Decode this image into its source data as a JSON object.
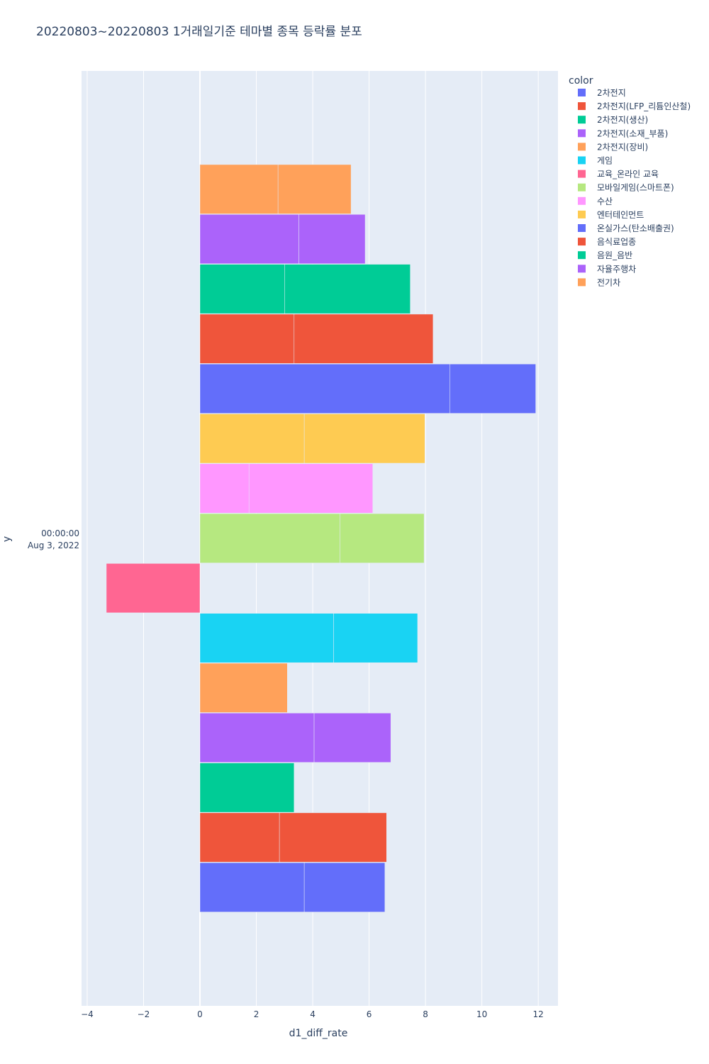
{
  "chart_data": {
    "type": "bar",
    "orientation": "horizontal",
    "barmode": "stacked",
    "title": "20220803~20220803 1거래일기준 테마별 종목 등락률 분포",
    "xlabel": "d1_diff_rate",
    "ylabel": "y",
    "xlim": [
      -4.2,
      12.7
    ],
    "x_ticks": [
      -4,
      -2,
      0,
      2,
      4,
      6,
      8,
      10,
      12
    ],
    "y_tick_label": [
      "00:00:00",
      "Aug 3, 2022"
    ],
    "legend_title": "color",
    "legend_placement": "right",
    "grid": true,
    "series": [
      {
        "name": "2차전지",
        "color": "#636efa",
        "segments": [
          3.7,
          2.86
        ]
      },
      {
        "name": "2차전지(LFP_리튬인산철)",
        "color": "#EF553B",
        "segments": [
          2.82,
          3.8
        ]
      },
      {
        "name": "2차전지(생산)",
        "color": "#00cc96",
        "segments": [
          3.34
        ]
      },
      {
        "name": "2차전지(소재_부품)",
        "color": "#ab63fa",
        "segments": [
          4.05,
          2.72
        ]
      },
      {
        "name": "2차전지(장비)",
        "color": "#FFA15A",
        "segments": [
          3.1
        ]
      },
      {
        "name": "게임",
        "color": "#19d3f3",
        "segments": [
          4.74,
          2.98
        ]
      },
      {
        "name": "교육_온라인 교육",
        "color": "#FF6692",
        "segments": [
          -3.32
        ]
      },
      {
        "name": "모바일게임(스마트폰)",
        "color": "#B6E880",
        "segments": [
          4.97,
          2.98
        ]
      },
      {
        "name": "수산",
        "color": "#FF97FF",
        "segments": [
          1.74,
          4.39
        ]
      },
      {
        "name": "엔터테인먼트",
        "color": "#FECB52",
        "segments": [
          3.7,
          4.28
        ]
      },
      {
        "name": "온실가스(탄소배출권)",
        "color": "#636efa",
        "segments": [
          8.87,
          3.04
        ]
      },
      {
        "name": "음식료업종",
        "color": "#EF553B",
        "segments": [
          3.34,
          4.93
        ]
      },
      {
        "name": "음원_음반",
        "color": "#00cc96",
        "segments": [
          3.01,
          4.45
        ]
      },
      {
        "name": "자율주행차",
        "color": "#ab63fa",
        "segments": [
          3.51,
          2.35
        ]
      },
      {
        "name": "전기차",
        "color": "#FFA15A",
        "segments": [
          2.77,
          2.59
        ]
      }
    ]
  }
}
